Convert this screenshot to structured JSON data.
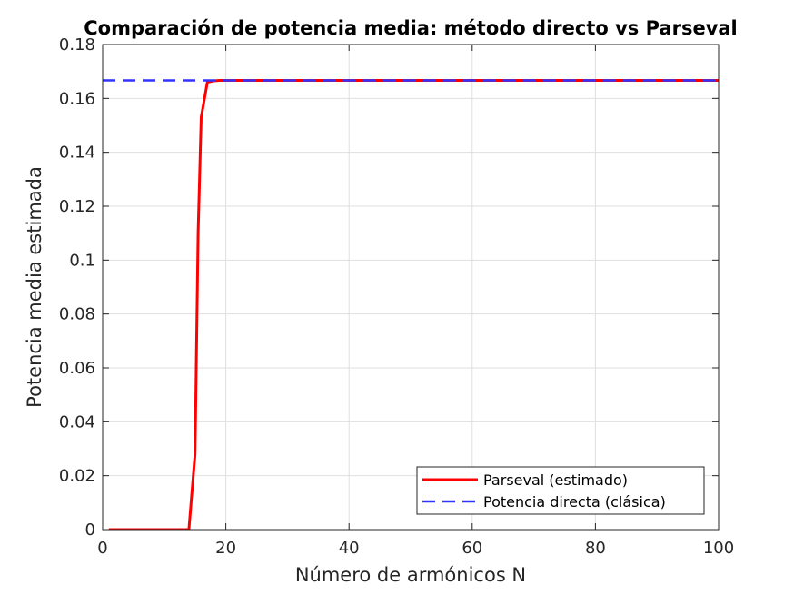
{
  "chart_data": {
    "type": "line",
    "title": "Comparación de potencia media: método directo vs Parseval",
    "xlabel": "Número de armónicos N",
    "ylabel": "Potencia media estimada",
    "xlim": [
      0,
      100
    ],
    "ylim": [
      0,
      0.18
    ],
    "xticks": [
      0,
      20,
      40,
      60,
      80,
      100
    ],
    "xtick_labels": [
      "0",
      "20",
      "40",
      "60",
      "80",
      "100"
    ],
    "yticks": [
      0,
      0.02,
      0.04,
      0.06,
      0.08,
      0.1,
      0.12,
      0.14,
      0.16,
      0.18
    ],
    "ytick_labels": [
      "0",
      "0.02",
      "0.04",
      "0.06",
      "0.08",
      "0.1",
      "0.12",
      "0.14",
      "0.16",
      "0.18"
    ],
    "grid": true,
    "legend_position": "bottom-right",
    "series": [
      {
        "name": "Parseval (estimado)",
        "color": "#ff0000",
        "style": "solid",
        "x": [
          1,
          2,
          3,
          4,
          5,
          6,
          7,
          8,
          9,
          10,
          11,
          12,
          13,
          14,
          15,
          15.5,
          16,
          17,
          18,
          19,
          20,
          30,
          40,
          50,
          60,
          70,
          80,
          90,
          100
        ],
        "y": [
          0,
          0,
          0,
          0,
          0,
          0,
          0,
          0,
          0,
          0,
          0,
          0,
          0,
          0,
          0.028,
          0.11,
          0.153,
          0.166,
          0.1665,
          0.1667,
          0.1667,
          0.1667,
          0.1667,
          0.1667,
          0.1667,
          0.1667,
          0.1667,
          0.1667,
          0.1667
        ]
      },
      {
        "name": "Potencia directa (clásica)",
        "color": "#3333ff",
        "style": "dashed",
        "x": [
          0,
          100
        ],
        "y": [
          0.1667,
          0.1667
        ]
      }
    ]
  }
}
